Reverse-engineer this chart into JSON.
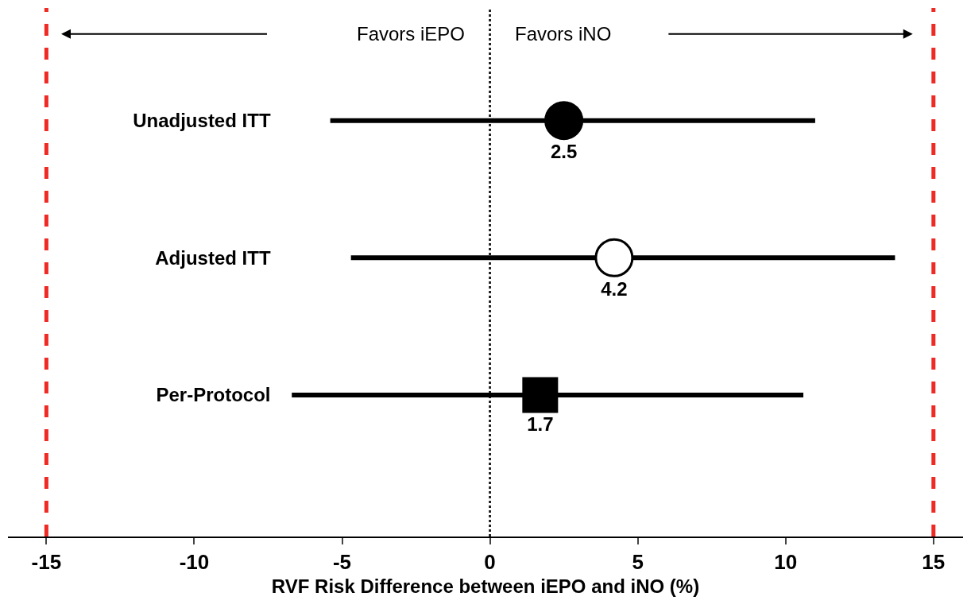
{
  "chart_data": {
    "type": "scatter",
    "orientation": "horizontal",
    "xlabel": "RVF Risk Difference between iEPO and iNO (%)",
    "categories": [
      "Unadjusted ITT",
      "Adjusted ITT",
      "Per-Protocol"
    ],
    "series": [
      {
        "color": "#000000",
        "marker": "circle",
        "values": [
          2.5,
          null,
          null
        ],
        "errors": [
          [
            -5.4,
            11.0
          ],
          null,
          null
        ]
      },
      {
        "color": "#ffffff",
        "marker": "circle",
        "values": [
          null,
          4.2,
          null
        ],
        "errors": [
          null,
          [
            -4.7,
            13.7
          ],
          null
        ]
      },
      {
        "color": "#000000",
        "marker": "square",
        "values": [
          null,
          null,
          1.7
        ],
        "errors": [
          null,
          null,
          [
            -6.7,
            10.6
          ]
        ]
      }
    ],
    "data_labels": true,
    "xlim": [
      -16.3,
      16.0
    ],
    "xticks": [
      -15,
      -10,
      -5,
      0,
      5,
      10,
      15
    ],
    "ref_lines": [
      {
        "axis": "x",
        "value": -15,
        "color": "#ee2a24",
        "line_style": "dashed"
      },
      {
        "axis": "x",
        "value": 15,
        "color": "#ee2a24",
        "line_style": "dashed"
      },
      {
        "axis": "x",
        "value": 0,
        "color": "#000000",
        "line_style": "dotted"
      }
    ],
    "annotations": [
      "Favors iEPO",
      "Favors iNO"
    ]
  }
}
